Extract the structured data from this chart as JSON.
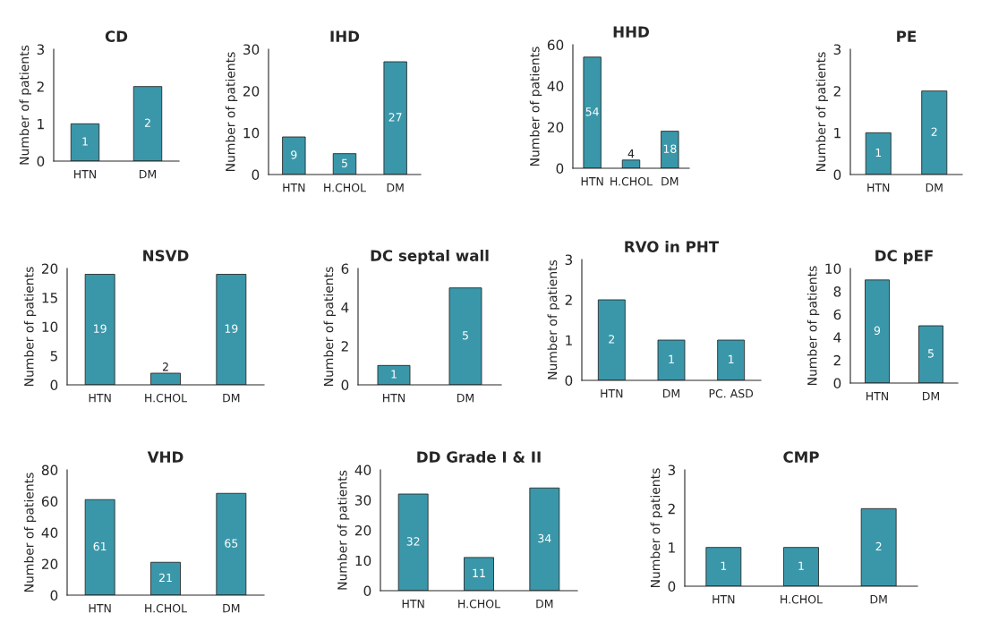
{
  "chart_data": [
    {
      "type": "bar",
      "title": "CD",
      "ylabel": "Number of patients",
      "categories": [
        "HTN",
        "DM"
      ],
      "values": [
        1,
        2
      ],
      "color": "#3a97a9",
      "ylim": [
        0,
        3
      ],
      "yticks": [
        0,
        1,
        2,
        3
      ],
      "data_labels": true
    },
    {
      "type": "bar",
      "title": "IHD",
      "ylabel": "Number of patients",
      "categories": [
        "HTN",
        "H.CHOL",
        "DM"
      ],
      "values": [
        9,
        5,
        27
      ],
      "color": "#3a97a9",
      "ylim": [
        0,
        30
      ],
      "yticks": [
        0,
        10,
        20,
        30
      ],
      "data_labels": true
    },
    {
      "type": "bar",
      "title": "HHD",
      "ylabel": "Number of patients",
      "categories": [
        "HTN",
        "H.CHOL",
        "DM"
      ],
      "values": [
        54,
        4,
        18
      ],
      "color": "#3a97a9",
      "ylim": [
        0,
        60
      ],
      "yticks": [
        0,
        20,
        40,
        60
      ],
      "data_labels": true
    },
    {
      "type": "bar",
      "title": "PE",
      "ylabel": "Number of patients",
      "categories": [
        "HTN",
        "DM"
      ],
      "values": [
        1,
        2
      ],
      "color": "#3a97a9",
      "ylim": [
        0,
        3
      ],
      "yticks": [
        0,
        1,
        2,
        3
      ],
      "data_labels": true
    },
    {
      "type": "bar",
      "title": "NSVD",
      "ylabel": "Number of patients",
      "categories": [
        "HTN",
        "H.CHOL",
        "DM"
      ],
      "values": [
        19,
        2,
        19
      ],
      "color": "#3a97a9",
      "ylim": [
        0,
        20
      ],
      "yticks": [
        0,
        5,
        10,
        15,
        20
      ],
      "data_labels": true
    },
    {
      "type": "bar",
      "title": "DC septal wall",
      "ylabel": "Number of patients",
      "categories": [
        "HTN",
        "DM"
      ],
      "values": [
        1,
        5
      ],
      "color": "#3a97a9",
      "ylim": [
        0,
        6
      ],
      "yticks": [
        0,
        2,
        4,
        6
      ],
      "data_labels": true
    },
    {
      "type": "bar",
      "title": "RVO in PHT",
      "ylabel": "Number of patients",
      "categories": [
        "HTN",
        "DM",
        "PC. ASD"
      ],
      "values": [
        2,
        1,
        1
      ],
      "color": "#3a97a9",
      "ylim": [
        0,
        3
      ],
      "yticks": [
        0,
        1,
        2,
        3
      ],
      "data_labels": true
    },
    {
      "type": "bar",
      "title": "DC pEF",
      "ylabel": "Number of patients",
      "categories": [
        "HTN",
        "DM"
      ],
      "values": [
        9,
        5
      ],
      "color": "#3a97a9",
      "ylim": [
        0,
        10
      ],
      "yticks": [
        0,
        2,
        4,
        6,
        8,
        10
      ],
      "data_labels": true
    },
    {
      "type": "bar",
      "title": "VHD",
      "ylabel": "Number of patients",
      "categories": [
        "HTN",
        "H.CHOL",
        "DM"
      ],
      "values": [
        61,
        21,
        65
      ],
      "color": "#3a97a9",
      "ylim": [
        0,
        80
      ],
      "yticks": [
        0,
        20,
        40,
        60,
        80
      ],
      "data_labels": true
    },
    {
      "type": "bar",
      "title": "DD Grade I & II",
      "ylabel": "Number of patients",
      "categories": [
        "HTN",
        "H.CHOL",
        "DM"
      ],
      "values": [
        32,
        11,
        34
      ],
      "color": "#3a97a9",
      "ylim": [
        0,
        40
      ],
      "yticks": [
        0,
        10,
        20,
        30,
        40
      ],
      "data_labels": true
    },
    {
      "type": "bar",
      "title": "CMP",
      "ylabel": "Number of patients",
      "categories": [
        "HTN",
        "H.CHOL",
        "DM"
      ],
      "values": [
        1,
        1,
        2
      ],
      "color": "#3a97a9",
      "ylim": [
        0,
        3
      ],
      "yticks": [
        0,
        1,
        2,
        3
      ],
      "data_labels": true
    }
  ]
}
